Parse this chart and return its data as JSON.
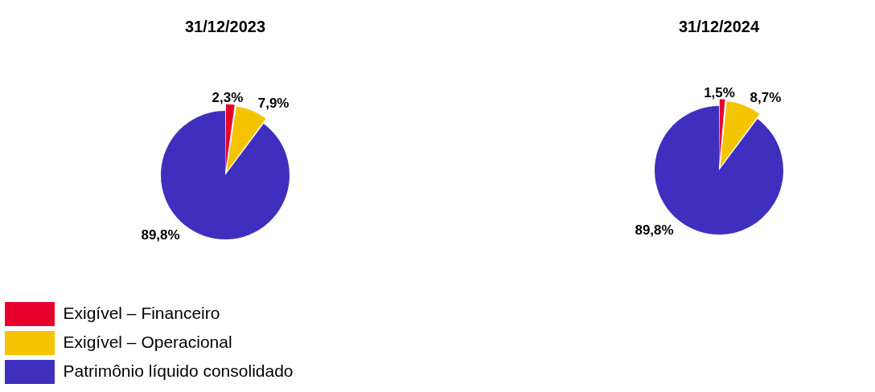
{
  "chart_data": [
    {
      "type": "pie",
      "title": "31/12/2023",
      "categories": [
        "Exigível – Financeiro",
        "Exigível – Operacional",
        "Patrimônio líquido consolidado"
      ],
      "values": [
        2.3,
        7.9,
        89.8
      ],
      "colors": [
        "#e8002d",
        "#f5c400",
        "#3f2fbf"
      ],
      "value_labels": [
        "2,3%",
        "7,9%",
        "89,8%"
      ],
      "legend": "bottom left"
    },
    {
      "type": "pie",
      "title": "31/12/2024",
      "categories": [
        null,
        null,
        null
      ],
      "values": [
        1.5,
        8.7,
        89.8
      ],
      "colors": [
        "#e8002d",
        "#f5c400",
        "#3f2fbf"
      ],
      "value_labels": [
        "1,5%",
        "8,7%",
        "89,8%"
      ],
      "legend": false
    }
  ]
}
